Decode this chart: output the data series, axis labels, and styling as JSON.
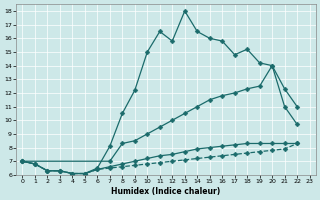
{
  "xlabel": "Humidex (Indice chaleur)",
  "xlim": [
    -0.5,
    23.5
  ],
  "ylim": [
    6,
    18.5
  ],
  "yticks": [
    6,
    7,
    8,
    9,
    10,
    11,
    12,
    13,
    14,
    15,
    16,
    17,
    18
  ],
  "xticks": [
    0,
    1,
    2,
    3,
    4,
    5,
    6,
    7,
    8,
    9,
    10,
    11,
    12,
    13,
    14,
    15,
    16,
    17,
    18,
    19,
    20,
    21,
    22,
    23
  ],
  "bg_color": "#cde8e8",
  "line_color": "#1b6b6b",
  "line1_x": [
    0,
    1,
    2,
    3,
    4,
    5,
    6,
    7,
    8,
    9,
    10,
    11,
    12,
    13,
    14,
    15,
    16,
    17,
    18,
    19,
    20,
    21,
    22
  ],
  "line1_y": [
    7.0,
    6.8,
    6.3,
    6.3,
    6.1,
    6.1,
    6.5,
    8.1,
    10.5,
    12.2,
    15.0,
    16.5,
    15.8,
    18.0,
    16.5,
    16.0,
    15.8,
    14.8,
    15.2,
    14.2,
    14.0,
    11.0,
    9.7
  ],
  "line1_style": "-",
  "line2_x": [
    0,
    7,
    8,
    9,
    10,
    11,
    12,
    13,
    14,
    15,
    16,
    17,
    18,
    19,
    20,
    21,
    22
  ],
  "line2_y": [
    7.0,
    7.0,
    8.3,
    8.5,
    9.0,
    9.5,
    10.0,
    10.5,
    11.0,
    11.5,
    11.8,
    12.0,
    12.3,
    12.5,
    14.0,
    12.3,
    11.0
  ],
  "line2_style": "-",
  "line3_x": [
    0,
    1,
    2,
    3,
    4,
    5,
    6,
    7,
    8,
    9,
    10,
    11,
    12,
    13,
    14,
    15,
    16,
    17,
    18,
    19,
    20,
    21,
    22
  ],
  "line3_y": [
    7.0,
    6.8,
    6.3,
    6.3,
    6.1,
    6.1,
    6.4,
    6.6,
    6.8,
    7.0,
    7.2,
    7.4,
    7.5,
    7.7,
    7.9,
    8.0,
    8.1,
    8.2,
    8.3,
    8.3,
    8.3,
    8.3,
    8.3
  ],
  "line3_style": "-",
  "line4_x": [
    0,
    1,
    2,
    3,
    4,
    5,
    6,
    7,
    8,
    9,
    10,
    11,
    12,
    13,
    14,
    15,
    16,
    17,
    18,
    19,
    20,
    21,
    22
  ],
  "line4_y": [
    7.0,
    6.8,
    6.3,
    6.3,
    6.1,
    6.1,
    6.4,
    6.5,
    6.6,
    6.7,
    6.8,
    6.9,
    7.0,
    7.1,
    7.2,
    7.3,
    7.4,
    7.5,
    7.6,
    7.7,
    7.8,
    7.9,
    8.3
  ],
  "line4_style": "--"
}
